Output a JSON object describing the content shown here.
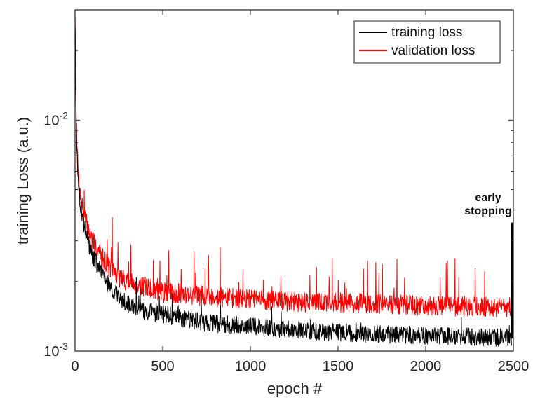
{
  "chart_data": {
    "type": "line",
    "xlabel": "epoch #",
    "ylabel": "training Loss (a.u.)",
    "xlim": [
      0,
      2500
    ],
    "ylim": [
      0.001,
      0.03
    ],
    "yscale": "log",
    "grid": false,
    "legend_position": "top-right",
    "x_ticks": [
      0,
      500,
      1000,
      1500,
      2000,
      2500
    ],
    "x_tick_labels": [
      "0",
      "500",
      "1000",
      "1500",
      "2000",
      "2500"
    ],
    "y_ticks": [
      0.001,
      0.01
    ],
    "y_tick_labels": [
      {
        "base": "10",
        "exp": "-3"
      },
      {
        "base": "10",
        "exp": "-2"
      }
    ],
    "series": [
      {
        "name": "training loss",
        "color": "#000000",
        "x": [
          0,
          5,
          10,
          20,
          30,
          50,
          75,
          100,
          150,
          200,
          250,
          300,
          400,
          500,
          600,
          700,
          800,
          900,
          1000,
          1200,
          1400,
          1600,
          1800,
          2000,
          2200,
          2400,
          2490
        ],
        "y": [
          0.028,
          0.012,
          0.0075,
          0.0052,
          0.0043,
          0.0035,
          0.003,
          0.0026,
          0.0022,
          0.0019,
          0.0017,
          0.0016,
          0.0015,
          0.00145,
          0.0014,
          0.00135,
          0.00132,
          0.0013,
          0.00128,
          0.00125,
          0.00122,
          0.0012,
          0.00118,
          0.00117,
          0.00116,
          0.00115,
          0.00115
        ]
      },
      {
        "name": "validation loss",
        "color": "#ff0000",
        "x": [
          0,
          5,
          10,
          20,
          30,
          50,
          75,
          100,
          150,
          200,
          250,
          300,
          400,
          500,
          600,
          700,
          800,
          900,
          1000,
          1200,
          1400,
          1600,
          1800,
          2000,
          2200,
          2400,
          2490
        ],
        "y": [
          0.03,
          0.013,
          0.008,
          0.0058,
          0.0048,
          0.0039,
          0.0034,
          0.003,
          0.0026,
          0.0023,
          0.0021,
          0.002,
          0.0019,
          0.0018,
          0.00178,
          0.00175,
          0.00172,
          0.0017,
          0.00168,
          0.00165,
          0.00163,
          0.00162,
          0.0016,
          0.00158,
          0.00157,
          0.00156,
          0.00155
        ]
      }
    ],
    "annotations": [
      {
        "text_lines": [
          "early",
          "stopping"
        ],
        "x": 2500,
        "y_from": 0.001,
        "y_to": 0.0036
      }
    ]
  }
}
